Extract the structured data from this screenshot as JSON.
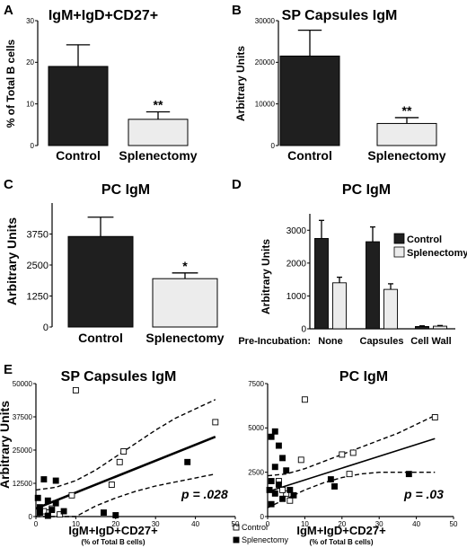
{
  "colors": {
    "control_fill": "#1f1f1f",
    "splenectomy_fill": "#ececec",
    "axis": "#000000",
    "text": "#000000"
  },
  "chart_data": [
    {
      "panel": "A",
      "type": "bar",
      "title": "IgM+IgD+CD27+",
      "ylabel": "% of Total B cells",
      "xlabel": "",
      "categories": [
        "Control",
        "Splenectomy"
      ],
      "values": [
        19,
        6.3
      ],
      "errors": [
        5.2,
        1.8
      ],
      "annotations": [
        "",
        "**"
      ],
      "ylim": [
        0,
        30
      ],
      "yticks": [
        "0",
        "10",
        "20",
        "30"
      ],
      "grid": false
    },
    {
      "panel": "B",
      "type": "bar",
      "title": "SP Capsules IgM",
      "ylabel": "Arbitrary Units",
      "xlabel": "",
      "categories": [
        "Control",
        "Splenectomy"
      ],
      "values": [
        21500,
        5300
      ],
      "errors": [
        6200,
        1400
      ],
      "annotations": [
        "",
        "**"
      ],
      "ylim": [
        0,
        30000
      ],
      "yticks": [
        "0",
        "10000",
        "20000",
        "30000"
      ],
      "grid": false
    },
    {
      "panel": "C",
      "type": "bar",
      "title": "PC IgM",
      "ylabel": "Arbitrary Units",
      "xlabel": "",
      "categories": [
        "Control",
        "Splenectomy"
      ],
      "values": [
        3650,
        1950
      ],
      "errors": [
        780,
        230
      ],
      "annotations": [
        "",
        "*"
      ],
      "ylim": [
        0,
        5000
      ],
      "yticks": [
        "0",
        "1250",
        "2500",
        "3750"
      ],
      "grid": false
    },
    {
      "panel": "D",
      "type": "bar",
      "title": "PC IgM",
      "ylabel": "Arbitrary Units",
      "xlabel": "",
      "group_label": "Pre-Incubation:",
      "categories": [
        "None",
        "Capsules",
        "Cell Wall"
      ],
      "series": [
        {
          "name": "Control",
          "values": [
            2750,
            2650,
            70
          ],
          "errors": [
            550,
            450,
            20
          ]
        },
        {
          "name": "Splenectomy",
          "values": [
            1400,
            1200,
            80
          ],
          "errors": [
            170,
            170,
            20
          ]
        }
      ],
      "ylim": [
        0,
        3500
      ],
      "yticks": [
        "0",
        "1000",
        "2000",
        "3000"
      ],
      "legend": "top-right",
      "grid": false
    },
    {
      "panel": "E",
      "type": "scatter",
      "title": "SP Capsules IgM",
      "ylabel": "Arbitrary Units",
      "xlabel": "IgM+IgD+CD27+",
      "xlabel_sub": "(% of Total B cells)",
      "xlim": [
        0,
        50
      ],
      "ylim": [
        0,
        50000
      ],
      "xticks": [
        "0",
        "10",
        "20",
        "30",
        "40",
        "50"
      ],
      "yticks": [
        "0",
        "12500",
        "25000",
        "37500",
        "50000"
      ],
      "series": [
        {
          "name": "Control",
          "marker": "open-square",
          "points": [
            [
              10,
              47500
            ],
            [
              45,
              35500
            ],
            [
              22,
              24500
            ],
            [
              21,
              20500
            ],
            [
              19,
              12000
            ],
            [
              9,
              8000
            ],
            [
              4,
              3000
            ],
            [
              3,
              1500
            ],
            [
              6,
              800
            ],
            [
              2,
              2000
            ]
          ]
        },
        {
          "name": "Splenectomy",
          "marker": "filled-square",
          "points": [
            [
              2,
              14000
            ],
            [
              5,
              13500
            ],
            [
              0.5,
              7000
            ],
            [
              3,
              6000
            ],
            [
              5,
              5000
            ],
            [
              1,
              3500
            ],
            [
              4,
              2500
            ],
            [
              7,
              2000
            ],
            [
              1,
              1500
            ],
            [
              3,
              300
            ],
            [
              17,
              1500
            ],
            [
              20,
              500
            ],
            [
              38,
              20500
            ]
          ]
        }
      ],
      "fit": {
        "x": [
          0,
          45
        ],
        "y": [
          3000,
          30000
        ]
      },
      "ci_upper": {
        "x": [
          0,
          5,
          10,
          15,
          20,
          25,
          30,
          35,
          40,
          45
        ],
        "y": [
          10000,
          11000,
          13500,
          17500,
          22500,
          27500,
          32500,
          37000,
          40500,
          44000
        ]
      },
      "ci_lower": {
        "x": [
          0,
          5,
          10,
          15,
          20,
          25,
          30,
          35,
          40,
          45
        ],
        "y": [
          -4000,
          -2500,
          0,
          4000,
          7000,
          9500,
          11500,
          13000,
          14500,
          16000
        ]
      },
      "pvalue": "p = .028",
      "legend": [
        "Control",
        "Splenectomy"
      ],
      "grid": false
    },
    {
      "panel": "E",
      "type": "scatter",
      "title": "PC IgM",
      "ylabel": "",
      "xlabel": "IgM+IgD+CD27+",
      "xlabel_sub": "(% of Total B cells)",
      "xlim": [
        0,
        50
      ],
      "ylim": [
        0,
        7500
      ],
      "xticks": [
        "0",
        "10",
        "20",
        "30",
        "40",
        "50"
      ],
      "yticks": [
        "0",
        "2500",
        "5000",
        "7500"
      ],
      "series": [
        {
          "name": "Control",
          "marker": "open-square",
          "points": [
            [
              10,
              6600
            ],
            [
              45,
              5600
            ],
            [
              23,
              3600
            ],
            [
              20,
              3500
            ],
            [
              22,
              2400
            ],
            [
              9,
              3200
            ],
            [
              5,
              1300
            ],
            [
              3,
              2000
            ],
            [
              6,
              900
            ],
            [
              4,
              1500
            ]
          ]
        },
        {
          "name": "Splenectomy",
          "marker": "filled-square",
          "points": [
            [
              1,
              4500
            ],
            [
              2,
              4800
            ],
            [
              3,
              4000
            ],
            [
              4,
              3300
            ],
            [
              2,
              2800
            ],
            [
              5,
              2600
            ],
            [
              1,
              2000
            ],
            [
              3,
              1800
            ],
            [
              6,
              1500
            ],
            [
              2,
              1300
            ],
            [
              4,
              1000
            ],
            [
              1,
              700
            ],
            [
              7,
              1200
            ],
            [
              17,
              2100
            ],
            [
              18,
              1700
            ],
            [
              38,
              2400
            ],
            [
              0.5,
              1500
            ]
          ]
        }
      ],
      "fit": {
        "x": [
          0,
          45
        ],
        "y": [
          1400,
          4400
        ]
      },
      "ci_upper": {
        "x": [
          0,
          5,
          10,
          15,
          20,
          25,
          30,
          35,
          40,
          45
        ],
        "y": [
          2300,
          2400,
          2700,
          3100,
          3500,
          3900,
          4300,
          4700,
          5200,
          5700
        ]
      },
      "ci_lower": {
        "x": [
          0,
          5,
          10,
          15,
          20,
          25,
          30,
          35,
          40,
          45
        ],
        "y": [
          500,
          1000,
          1500,
          1900,
          2200,
          2400,
          2500,
          2500,
          2500,
          2500
        ]
      },
      "pvalue": "p = .03",
      "grid": false
    }
  ]
}
